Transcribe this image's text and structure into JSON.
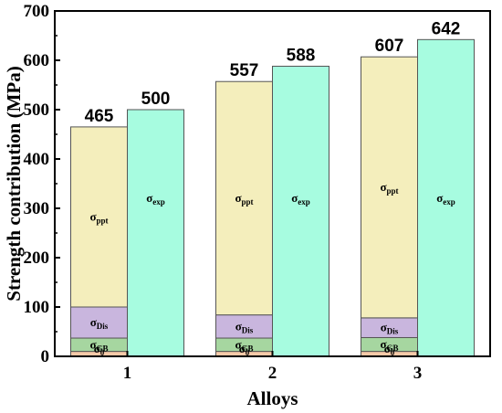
{
  "chart_data": {
    "type": "bar",
    "stacked": true,
    "xlabel": "Alloys",
    "ylabel": "Strength contribution (MPa)",
    "ylim": [
      0,
      700
    ],
    "yticks": [
      0,
      100,
      200,
      300,
      400,
      500,
      600,
      700
    ],
    "categories": [
      "1",
      "2",
      "3"
    ],
    "calculated": {
      "components": [
        {
          "key": "sigma0",
          "symbol": "σ",
          "subscript": "0",
          "color": "#f6c9a8",
          "values": [
            10,
            10,
            10
          ]
        },
        {
          "key": "sigmaGB",
          "symbol": "σ",
          "subscript": "GB",
          "color": "#a6d6a0",
          "values": [
            27,
            27,
            28
          ]
        },
        {
          "key": "sigmaDis",
          "symbol": "σ",
          "subscript": "Dis",
          "color": "#c9b6de",
          "values": [
            63,
            47,
            40
          ]
        },
        {
          "key": "sigmaPpt",
          "symbol": "σ",
          "subscript": "ppt",
          "color": "#f4eebc",
          "values": [
            365,
            473,
            529
          ]
        }
      ],
      "totals": [
        "465",
        "557",
        "607"
      ]
    },
    "experimental": {
      "key": "sigmaExp",
      "symbol": "σ",
      "subscript": "exp",
      "color": "#a7fce0",
      "values": [
        500,
        588,
        642
      ],
      "labels": [
        "500",
        "588",
        "642"
      ]
    }
  }
}
